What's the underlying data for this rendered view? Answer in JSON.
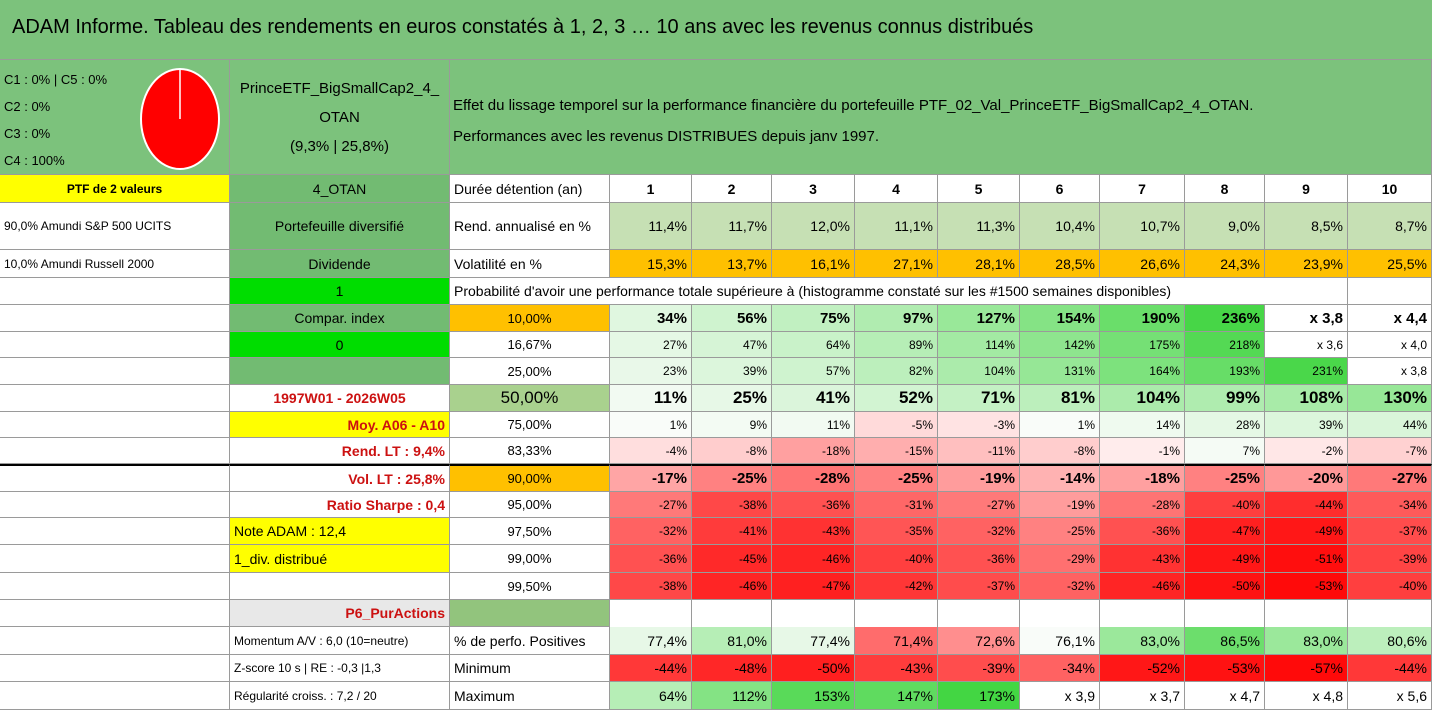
{
  "header": {
    "title": "ADAM Informe. Tableau des rendements en euros constatés à 1, 2, 3 … 10 ans avec les revenus connus distribués"
  },
  "summary": {
    "allocation": [
      "C1 : 0% | C5 : 0%",
      "C2 : 0%",
      "C3 : 0%",
      "C4 : 100%"
    ],
    "fund": [
      "PrinceETF_BigSmallCap2_4_",
      "OTAN",
      "(9,3% | 25,8%)"
    ],
    "description": [
      "Effet du lissage temporel sur la performance financière du portefeuille PTF_02_Val_PrinceETF_BigSmallCap2_4_OTAN.",
      "Performances avec les revenus DISTRIBUES depuis janv 1997."
    ]
  },
  "table": {
    "rows": [
      [
        "PTF de 2 valeurs",
        "4_OTAN",
        "Durée détention (an)",
        "1",
        "2",
        "3",
        "4",
        "5",
        "6",
        "7",
        "8",
        "9",
        "10"
      ],
      [
        "90,0% Amundi S&P 500 UCITS",
        "Portefeuille diversifié",
        "Rend. annualisé en %",
        "11,4%",
        "11,7%",
        "12,0%",
        "11,1%",
        "11,3%",
        "10,4%",
        "10,7%",
        "9,0%",
        "8,5%",
        "8,7%"
      ],
      [
        "10,0% Amundi Russell 2000",
        "Dividende",
        "Volatilité en %",
        "15,3%",
        "13,7%",
        "16,1%",
        "27,1%",
        "28,1%",
        "28,5%",
        "26,6%",
        "24,3%",
        "23,9%",
        "25,5%"
      ],
      [
        null,
        "1",
        "Probabilité d'avoir une performance totale supérieure à (histogramme constaté sur les #1500 semaines disponibles)",
        null,
        null,
        null,
        null,
        null,
        null,
        null,
        null,
        null,
        null
      ],
      [
        null,
        "Compar. index",
        "10,00%",
        "34%",
        "56%",
        "75%",
        "97%",
        "127%",
        "154%",
        "190%",
        "236%",
        "x 3,8",
        "x 4,4"
      ],
      [
        null,
        "0",
        "16,67%",
        "27%",
        "47%",
        "64%",
        "89%",
        "114%",
        "142%",
        "175%",
        "218%",
        "x 3,6",
        "x 4,0"
      ],
      [
        null,
        null,
        "25,00%",
        "23%",
        "39%",
        "57%",
        "82%",
        "104%",
        "131%",
        "164%",
        "193%",
        "231%",
        "x 3,8"
      ],
      [
        null,
        "1997W01 - 2026W05",
        "50,00%",
        "11%",
        "25%",
        "41%",
        "52%",
        "71%",
        "81%",
        "104%",
        "99%",
        "108%",
        "130%"
      ],
      [
        null,
        "Moy. A06 - A10",
        "75,00%",
        "1%",
        "9%",
        "11%",
        "-5%",
        "-3%",
        "1%",
        "14%",
        "28%",
        "39%",
        "44%"
      ],
      [
        null,
        "Rend. LT : 9,4%",
        "83,33%",
        "-4%",
        "-8%",
        "-18%",
        "-15%",
        "-11%",
        "-8%",
        "-1%",
        "7%",
        "-2%",
        "-7%"
      ],
      [
        null,
        "Vol. LT : 25,8%",
        "90,00%",
        "-17%",
        "-25%",
        "-28%",
        "-25%",
        "-19%",
        "-14%",
        "-18%",
        "-25%",
        "-20%",
        "-27%"
      ],
      [
        null,
        "Ratio Sharpe : 0,4",
        "95,00%",
        "-27%",
        "-38%",
        "-36%",
        "-31%",
        "-27%",
        "-19%",
        "-28%",
        "-40%",
        "-44%",
        "-34%"
      ],
      [
        null,
        "Note ADAM : 12,4",
        "97,50%",
        "-32%",
        "-41%",
        "-43%",
        "-35%",
        "-32%",
        "-25%",
        "-36%",
        "-47%",
        "-49%",
        "-37%"
      ],
      [
        null,
        "1_div. distribué",
        "99,00%",
        "-36%",
        "-45%",
        "-46%",
        "-40%",
        "-36%",
        "-29%",
        "-43%",
        "-49%",
        "-51%",
        "-39%"
      ],
      [
        null,
        null,
        "99,50%",
        "-38%",
        "-46%",
        "-47%",
        "-42%",
        "-37%",
        "-32%",
        "-46%",
        "-50%",
        "-53%",
        "-40%"
      ],
      [
        null,
        "P6_PurActions",
        null,
        null,
        null,
        null,
        null,
        null,
        null,
        null,
        null,
        null,
        null
      ],
      [
        null,
        "Momentum A/V : 6,0 (10=neutre)",
        "% de perfo. Positives",
        "77,4%",
        "81,0%",
        "77,4%",
        "71,4%",
        "72,6%",
        "76,1%",
        "83,0%",
        "86,5%",
        "83,0%",
        "80,6%"
      ],
      [
        null,
        "Z-score 10 s | RE : -0,3 |1,3",
        "Minimum",
        "-44%",
        "-48%",
        "-50%",
        "-43%",
        "-39%",
        "-34%",
        "-52%",
        "-53%",
        "-57%",
        "-44%"
      ],
      [
        null,
        "Régularité croiss. : 7,2 / 20",
        "Maximum",
        "64%",
        "112%",
        "153%",
        "147%",
        "173%",
        "x 3,9",
        "x 3,7",
        "x 4,7",
        "x 4,8",
        "x 5,6"
      ]
    ]
  }
}
